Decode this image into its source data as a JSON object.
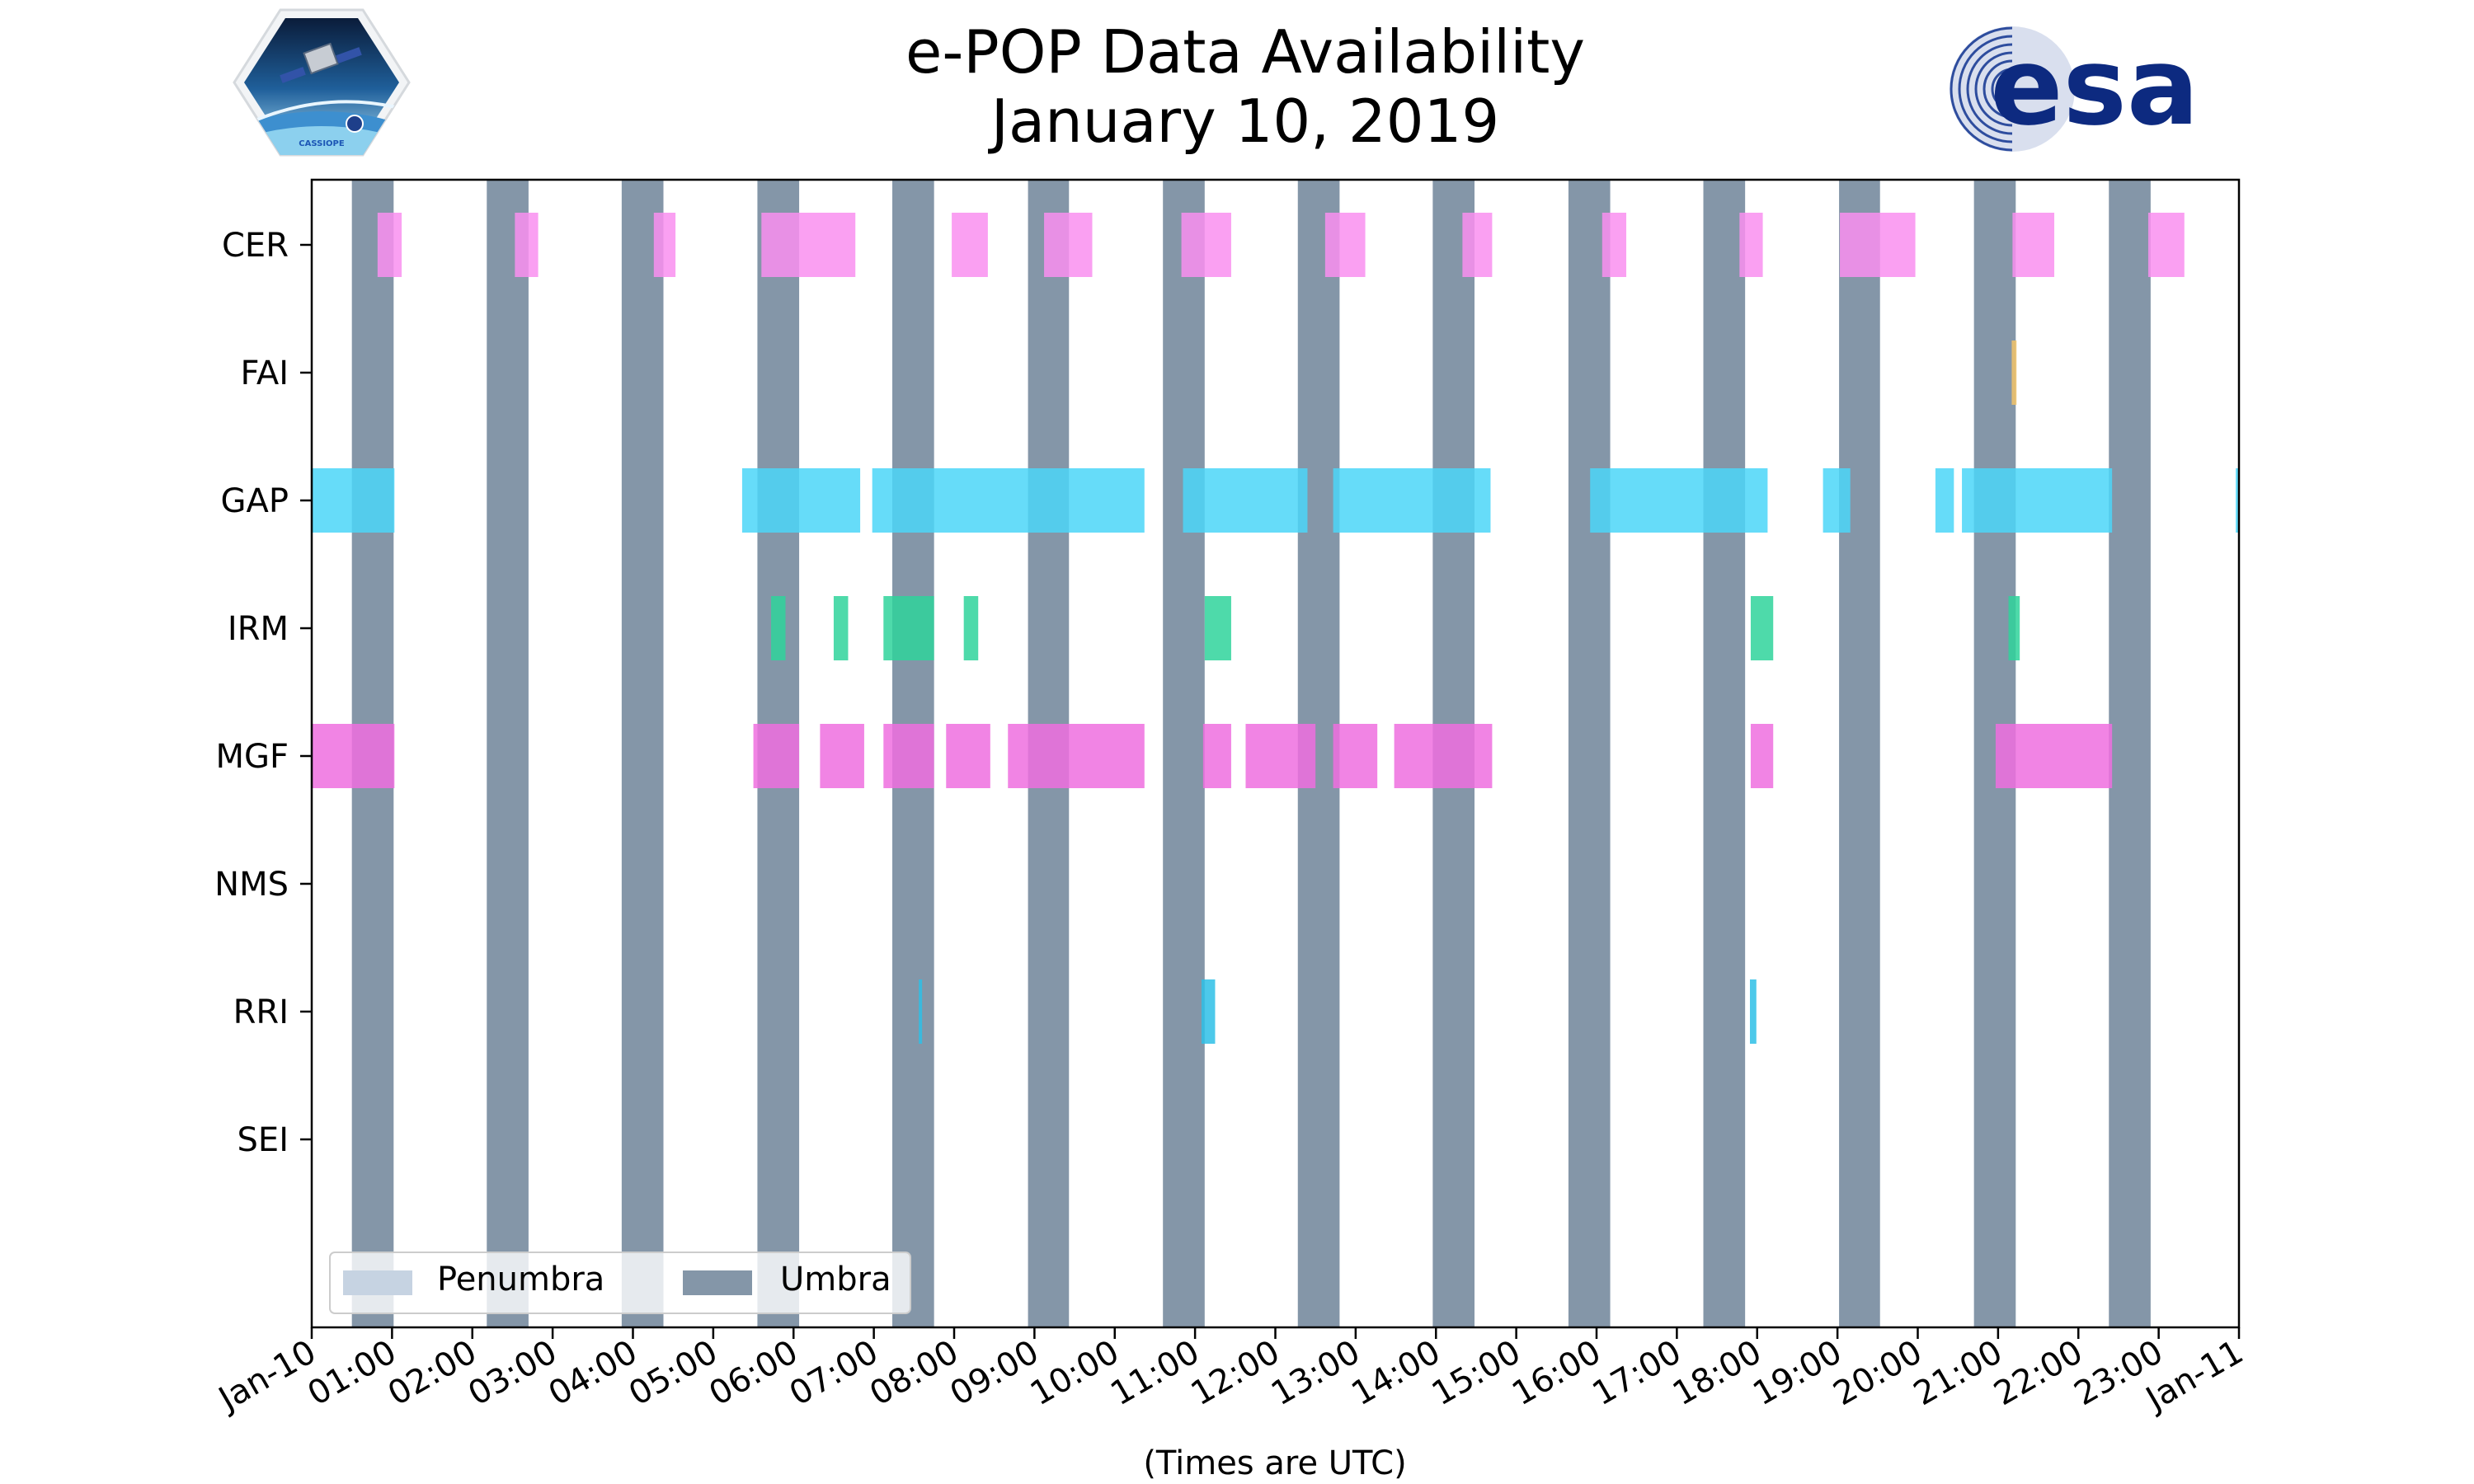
{
  "chart_data": {
    "type": "timeline",
    "title_lines": [
      "e-POP Data Availability",
      "January 10, 2019"
    ],
    "xlabel": "(Times are UTC)",
    "x_unit": "hours since 2019-01-10 00:00 UTC",
    "xlim": [
      0,
      24
    ],
    "x_ticks": [
      {
        "value": 0,
        "label": "Jan-10"
      },
      {
        "value": 1,
        "label": "01:00"
      },
      {
        "value": 2,
        "label": "02:00"
      },
      {
        "value": 3,
        "label": "03:00"
      },
      {
        "value": 4,
        "label": "04:00"
      },
      {
        "value": 5,
        "label": "05:00"
      },
      {
        "value": 6,
        "label": "06:00"
      },
      {
        "value": 7,
        "label": "07:00"
      },
      {
        "value": 8,
        "label": "08:00"
      },
      {
        "value": 9,
        "label": "09:00"
      },
      {
        "value": 10,
        "label": "10:00"
      },
      {
        "value": 11,
        "label": "11:00"
      },
      {
        "value": 12,
        "label": "12:00"
      },
      {
        "value": 13,
        "label": "13:00"
      },
      {
        "value": 14,
        "label": "14:00"
      },
      {
        "value": 15,
        "label": "15:00"
      },
      {
        "value": 16,
        "label": "16:00"
      },
      {
        "value": 17,
        "label": "17:00"
      },
      {
        "value": 18,
        "label": "18:00"
      },
      {
        "value": 19,
        "label": "19:00"
      },
      {
        "value": 20,
        "label": "20:00"
      },
      {
        "value": 21,
        "label": "21:00"
      },
      {
        "value": 22,
        "label": "22:00"
      },
      {
        "value": 23,
        "label": "23:00"
      },
      {
        "value": 24,
        "label": "Jan-11"
      }
    ],
    "instruments": [
      "CER",
      "FAI",
      "GAP",
      "IRM",
      "MGF",
      "NMS",
      "RRI",
      "SEI"
    ],
    "series": [
      {
        "name": "CER",
        "color": "#f98ff0",
        "intervals": [
          [
            0.82,
            1.12
          ],
          [
            2.53,
            2.82
          ],
          [
            4.26,
            4.53
          ],
          [
            5.6,
            6.77
          ],
          [
            7.97,
            8.42
          ],
          [
            9.12,
            9.72
          ],
          [
            10.83,
            11.45
          ],
          [
            12.62,
            13.12
          ],
          [
            14.33,
            14.7
          ],
          [
            16.07,
            16.37
          ],
          [
            17.78,
            18.07
          ],
          [
            19.03,
            19.97
          ],
          [
            21.18,
            21.7
          ],
          [
            22.87,
            23.32
          ]
        ]
      },
      {
        "name": "FAI",
        "color": "#f2c46a",
        "intervals": [
          [
            21.17,
            21.23
          ]
        ]
      },
      {
        "name": "GAP",
        "color": "#4bd6f8",
        "intervals": [
          [
            0,
            1.03
          ],
          [
            5.36,
            6.83
          ],
          [
            6.98,
            10.37
          ],
          [
            10.85,
            12.4
          ],
          [
            12.72,
            14.68
          ],
          [
            15.92,
            18.13
          ],
          [
            18.82,
            19.16
          ],
          [
            20.22,
            20.45
          ],
          [
            20.55,
            22.42
          ],
          [
            23.96,
            24
          ]
        ]
      },
      {
        "name": "IRM",
        "color": "#2fd39b",
        "intervals": [
          [
            5.72,
            5.9
          ],
          [
            6.5,
            6.68
          ],
          [
            7.12,
            7.75
          ],
          [
            8.12,
            8.3
          ],
          [
            11.12,
            11.45
          ],
          [
            17.92,
            18.2
          ],
          [
            21.13,
            21.27
          ]
        ]
      },
      {
        "name": "MGF",
        "color": "#ee6fdf",
        "intervals": [
          [
            0,
            1.03
          ],
          [
            5.5,
            6.07
          ],
          [
            6.33,
            6.88
          ],
          [
            7.12,
            7.75
          ],
          [
            7.9,
            8.45
          ],
          [
            8.67,
            10.37
          ],
          [
            11.1,
            11.45
          ],
          [
            11.63,
            12.5
          ],
          [
            12.72,
            13.27
          ],
          [
            13.48,
            14.7
          ],
          [
            17.92,
            18.2
          ],
          [
            20.97,
            22.42
          ]
        ]
      },
      {
        "name": "NMS",
        "color": "#888888",
        "intervals": []
      },
      {
        "name": "RRI",
        "color": "#2ebfe6",
        "intervals": [
          [
            7.56,
            7.6
          ],
          [
            11.08,
            11.25
          ],
          [
            17.91,
            17.99
          ]
        ]
      },
      {
        "name": "SEI",
        "color": "#888888",
        "intervals": []
      }
    ],
    "umbra_color": "#8496a8",
    "penumbra_color": "#c6d3e2",
    "umbra_intervals": [
      [
        0.5,
        1.02
      ],
      [
        2.18,
        2.7
      ],
      [
        3.86,
        4.38
      ],
      [
        5.55,
        6.07
      ],
      [
        7.23,
        7.75
      ],
      [
        8.92,
        9.43
      ],
      [
        10.6,
        11.12
      ],
      [
        12.28,
        12.8
      ],
      [
        13.96,
        14.48
      ],
      [
        15.65,
        16.17
      ],
      [
        17.33,
        17.85
      ],
      [
        19.02,
        19.53
      ],
      [
        20.7,
        21.22
      ],
      [
        22.38,
        22.9
      ]
    ],
    "legend": {
      "position": "lower-left",
      "entries": [
        {
          "label": "Penumbra",
          "color": "#c6d3e2"
        },
        {
          "label": "Umbra",
          "color": "#8496a8"
        }
      ]
    },
    "logos": [
      {
        "name": "cassiope-mission-logo",
        "text": "CASSIOPE"
      },
      {
        "name": "esa-logo",
        "text": "esa"
      }
    ]
  }
}
